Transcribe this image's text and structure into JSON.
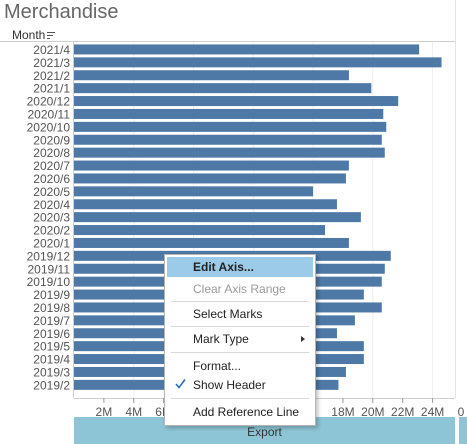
{
  "sheet": {
    "title": "Merchandise"
  },
  "rows_header": {
    "label": "Month"
  },
  "axis": {
    "title": "Export",
    "tick_labels_left": [
      "2M",
      "4M",
      "6M"
    ],
    "tick_labels_right": [
      "18M",
      "20M",
      "22M",
      "24M"
    ],
    "right_edge_tick": "0"
  },
  "context_menu": {
    "items": [
      {
        "label": "Edit Axis...",
        "state": "highlighted"
      },
      {
        "label": "Clear Axis Range",
        "state": "disabled"
      },
      {
        "label": "Select Marks",
        "state": "normal"
      },
      {
        "label": "Mark Type",
        "state": "submenu"
      },
      {
        "label": "Format...",
        "state": "normal"
      },
      {
        "label": "Show Header",
        "state": "checked"
      },
      {
        "label": "Add Reference Line",
        "state": "normal"
      }
    ]
  },
  "chart_data": {
    "type": "bar",
    "orientation": "horizontal",
    "xlabel": "Export",
    "ylabel": "Month",
    "bar_color": "#4e79a7",
    "xlim": [
      0,
      25500000
    ],
    "categories": [
      "2021/4",
      "2021/3",
      "2021/2",
      "2021/1",
      "2020/12",
      "2020/11",
      "2020/10",
      "2020/9",
      "2020/8",
      "2020/7",
      "2020/6",
      "2020/5",
      "2020/4",
      "2020/3",
      "2020/2",
      "2020/1",
      "2019/12",
      "2019/11",
      "2019/10",
      "2019/9",
      "2019/8",
      "2019/7",
      "2019/6",
      "2019/5",
      "2019/4",
      "2019/3",
      "2019/2"
    ],
    "values": [
      23100000,
      24600000,
      18400000,
      19900000,
      21700000,
      20700000,
      20900000,
      20600000,
      20800000,
      18400000,
      18200000,
      16000000,
      17600000,
      19200000,
      16800000,
      18400000,
      21200000,
      20800000,
      20600000,
      19400000,
      20600000,
      18800000,
      17600000,
      19400000,
      19400000,
      18200000,
      17700000
    ]
  }
}
